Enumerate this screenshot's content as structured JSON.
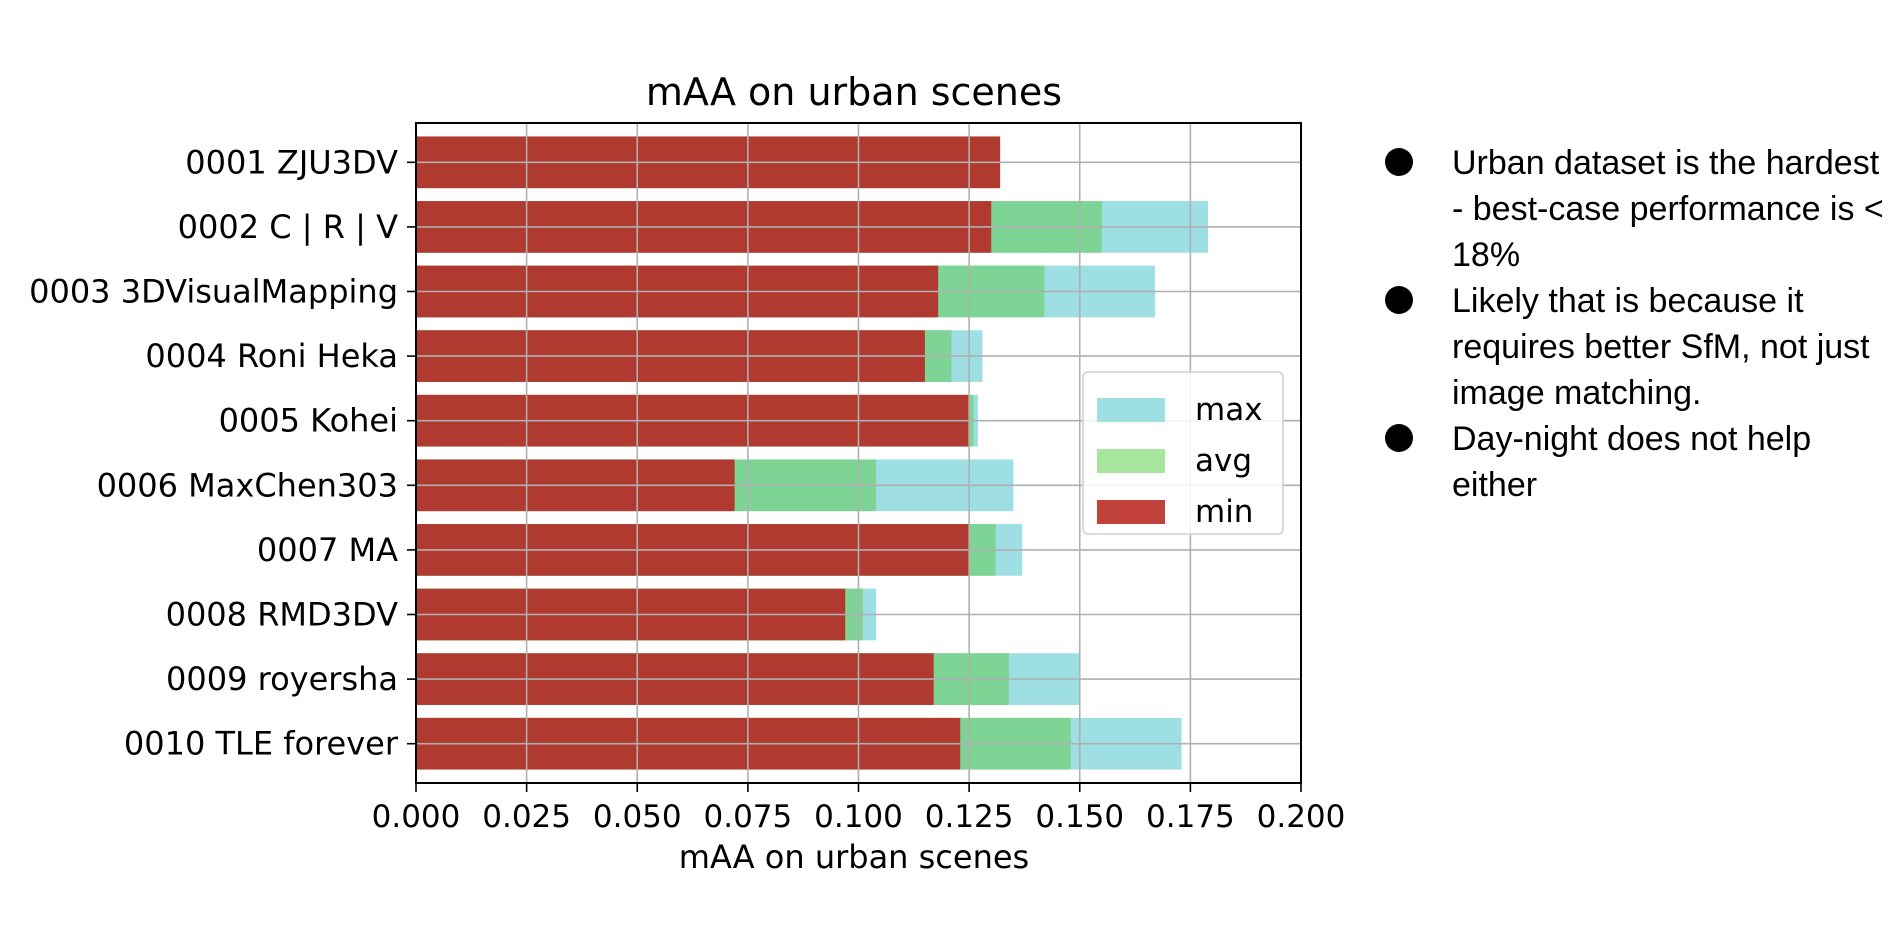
{
  "chart_data": {
    "type": "bar",
    "orientation": "horizontal",
    "title": "mAA on urban scenes",
    "xlabel": "mAA on urban scenes",
    "ylabel": "",
    "xlim": [
      0,
      0.2
    ],
    "xticks": [
      "0.000",
      "0.025",
      "0.050",
      "0.075",
      "0.100",
      "0.125",
      "0.150",
      "0.175",
      "0.200"
    ],
    "grid": true,
    "legend_position": "center-right",
    "categories": [
      "0001 ZJU3DV",
      "0002 C | R | V",
      "0003 3DVisualMapping",
      "0004 Roni Heka",
      "0005 Kohei",
      "0006 MaxChen303",
      "0007 MA",
      "0008 RMD3DV",
      "0009 royersha",
      "0010 TLE forever"
    ],
    "series": [
      {
        "name": "max",
        "color": "#9ddfe3",
        "values": [
          0.132,
          0.179,
          0.167,
          0.128,
          0.127,
          0.135,
          0.137,
          0.104,
          0.15,
          0.173
        ]
      },
      {
        "name": "avg",
        "color": "#7ed494",
        "values": [
          0.132,
          0.155,
          0.142,
          0.121,
          0.126,
          0.104,
          0.131,
          0.101,
          0.134,
          0.148
        ]
      },
      {
        "name": "min",
        "color": "#b03a30",
        "values": [
          0.132,
          0.13,
          0.118,
          0.115,
          0.125,
          0.072,
          0.125,
          0.097,
          0.117,
          0.123
        ]
      }
    ],
    "legend": [
      {
        "label": "max",
        "color": "#9ddfe3"
      },
      {
        "label": "avg",
        "color": "#a8e6a0"
      },
      {
        "label": "min",
        "color": "#c0423a"
      }
    ]
  },
  "notes": [
    "Urban dataset is the hardest - best-case performance is < 18%",
    "Likely that is because it requires better SfM, not just image matching.",
    "Day-night does not help either"
  ]
}
